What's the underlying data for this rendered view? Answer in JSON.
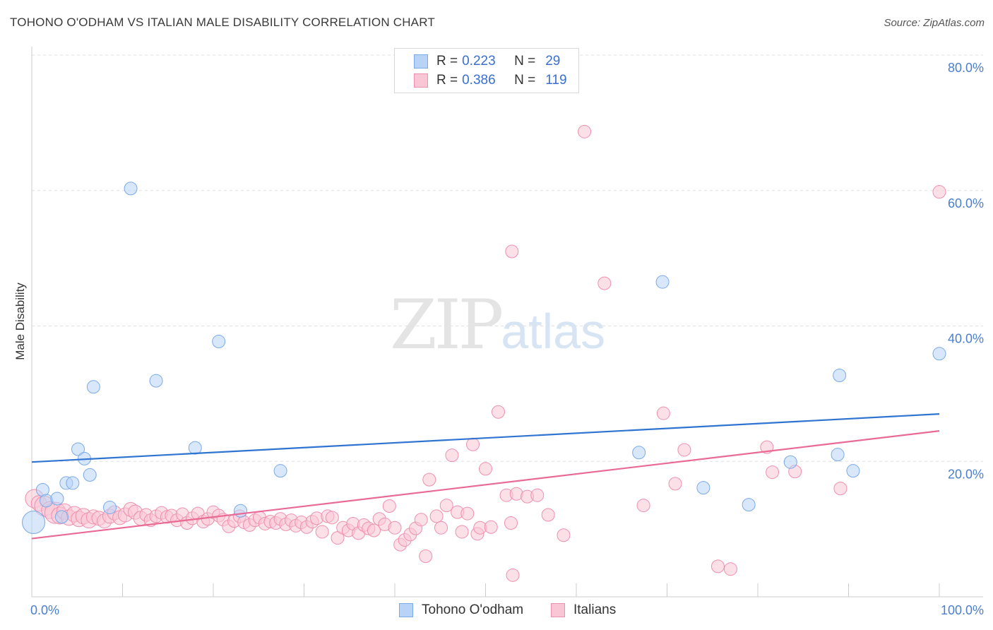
{
  "title": "TOHONO O'ODHAM VS ITALIAN MALE DISABILITY CORRELATION CHART",
  "source": "Source: ZipAtlas.com",
  "watermark": {
    "zip": "ZIP",
    "atlas": "atlas"
  },
  "colors": {
    "blue_fill": "#b8d3f5",
    "blue_stroke": "#7aaae8",
    "blue_line": "#2f74d0",
    "pink_fill": "#f9c6d6",
    "pink_stroke": "#ee8fb0",
    "pink_line": "#e86a95",
    "grid": "#e0e0e0",
    "axis": "#cccccc",
    "tick_text": "#4a7fd0"
  },
  "legend": {
    "rows": [
      {
        "r_label": "R =",
        "r_value": "0.223",
        "n_label": "N =",
        "n_value": "29"
      },
      {
        "r_label": "R =",
        "r_value": "0.386",
        "n_label": "N =",
        "n_value": "119"
      }
    ]
  },
  "bottom_legend": [
    "Tohono O'odham",
    "Italians"
  ],
  "chart_data": {
    "type": "scatter",
    "title": "TOHONO O'ODHAM VS ITALIAN MALE DISABILITY CORRELATION CHART",
    "xlabel": "",
    "ylabel": "Male Disability",
    "xlim": [
      0,
      100
    ],
    "ylim": [
      0,
      80
    ],
    "x_tick_labels": [
      "0.0%",
      "100.0%"
    ],
    "y_ticks": [
      20,
      40,
      60,
      80
    ],
    "y_tick_labels": [
      "20.0%",
      "40.0%",
      "60.0%",
      "80.0%"
    ],
    "series": [
      {
        "name": "Tohono O'odham",
        "R": 0.223,
        "N": 29,
        "trend": {
          "x": [
            0,
            100
          ],
          "y": [
            19.9,
            27.0
          ]
        },
        "points": [
          {
            "x": 0.2,
            "y": 11.0,
            "s": 16
          },
          {
            "x": 1.2,
            "y": 15.8,
            "s": 9
          },
          {
            "x": 1.6,
            "y": 14.2,
            "s": 9
          },
          {
            "x": 2.8,
            "y": 14.5,
            "s": 9
          },
          {
            "x": 3.3,
            "y": 11.8,
            "s": 9
          },
          {
            "x": 3.8,
            "y": 16.8,
            "s": 9
          },
          {
            "x": 4.5,
            "y": 16.8,
            "s": 9
          },
          {
            "x": 5.1,
            "y": 21.8,
            "s": 9
          },
          {
            "x": 5.8,
            "y": 20.4,
            "s": 9
          },
          {
            "x": 6.4,
            "y": 18.0,
            "s": 9
          },
          {
            "x": 6.8,
            "y": 31.0,
            "s": 9
          },
          {
            "x": 8.6,
            "y": 13.2,
            "s": 9
          },
          {
            "x": 10.9,
            "y": 60.3,
            "s": 9
          },
          {
            "x": 13.7,
            "y": 31.9,
            "s": 9
          },
          {
            "x": 18.0,
            "y": 22.0,
            "s": 9
          },
          {
            "x": 20.6,
            "y": 37.7,
            "s": 9
          },
          {
            "x": 23.0,
            "y": 12.7,
            "s": 9
          },
          {
            "x": 27.4,
            "y": 18.6,
            "s": 9
          },
          {
            "x": 66.9,
            "y": 21.3,
            "s": 9
          },
          {
            "x": 69.5,
            "y": 46.5,
            "s": 9
          },
          {
            "x": 74.0,
            "y": 16.1,
            "s": 9
          },
          {
            "x": 79.0,
            "y": 13.6,
            "s": 9
          },
          {
            "x": 83.6,
            "y": 19.9,
            "s": 9
          },
          {
            "x": 88.8,
            "y": 21.0,
            "s": 9
          },
          {
            "x": 89.0,
            "y": 32.7,
            "s": 9
          },
          {
            "x": 90.5,
            "y": 18.6,
            "s": 9
          },
          {
            "x": 100.0,
            "y": 35.9,
            "s": 9
          }
        ]
      },
      {
        "name": "Italians",
        "R": 0.386,
        "N": 119,
        "trend": {
          "x": [
            0,
            100
          ],
          "y": [
            8.6,
            24.5
          ]
        },
        "points": [
          {
            "x": 0.3,
            "y": 14.5,
            "s": 13
          },
          {
            "x": 0.8,
            "y": 13.8,
            "s": 11
          },
          {
            "x": 1.4,
            "y": 13.4,
            "s": 14
          },
          {
            "x": 2.0,
            "y": 12.8,
            "s": 12
          },
          {
            "x": 2.6,
            "y": 12.4,
            "s": 15
          },
          {
            "x": 3.1,
            "y": 12.0,
            "s": 12
          },
          {
            "x": 3.6,
            "y": 12.6,
            "s": 11
          },
          {
            "x": 4.1,
            "y": 11.7,
            "s": 11
          },
          {
            "x": 4.7,
            "y": 12.2,
            "s": 11
          },
          {
            "x": 5.2,
            "y": 11.5,
            "s": 11
          },
          {
            "x": 5.7,
            "y": 11.9,
            "s": 11
          },
          {
            "x": 6.3,
            "y": 11.3,
            "s": 11
          },
          {
            "x": 6.8,
            "y": 11.8,
            "s": 10
          },
          {
            "x": 7.4,
            "y": 11.6,
            "s": 10
          },
          {
            "x": 8.0,
            "y": 11.2,
            "s": 10
          },
          {
            "x": 8.6,
            "y": 11.9,
            "s": 10
          },
          {
            "x": 9.1,
            "y": 12.4,
            "s": 10
          },
          {
            "x": 9.7,
            "y": 11.7,
            "s": 10
          },
          {
            "x": 10.3,
            "y": 12.1,
            "s": 10
          },
          {
            "x": 10.9,
            "y": 12.9,
            "s": 10
          },
          {
            "x": 11.4,
            "y": 12.5,
            "s": 10
          },
          {
            "x": 12.0,
            "y": 11.6,
            "s": 10
          },
          {
            "x": 12.6,
            "y": 12.1,
            "s": 9
          },
          {
            "x": 13.1,
            "y": 11.3,
            "s": 9
          },
          {
            "x": 13.7,
            "y": 11.9,
            "s": 9
          },
          {
            "x": 14.3,
            "y": 12.4,
            "s": 9
          },
          {
            "x": 14.9,
            "y": 11.8,
            "s": 9
          },
          {
            "x": 15.4,
            "y": 12.0,
            "s": 9
          },
          {
            "x": 16.0,
            "y": 11.3,
            "s": 9
          },
          {
            "x": 16.6,
            "y": 12.2,
            "s": 9
          },
          {
            "x": 17.1,
            "y": 10.9,
            "s": 9
          },
          {
            "x": 17.7,
            "y": 11.6,
            "s": 9
          },
          {
            "x": 18.3,
            "y": 12.3,
            "s": 9
          },
          {
            "x": 18.9,
            "y": 11.1,
            "s": 9
          },
          {
            "x": 19.4,
            "y": 11.5,
            "s": 9
          },
          {
            "x": 20.0,
            "y": 12.5,
            "s": 9
          },
          {
            "x": 20.6,
            "y": 12.0,
            "s": 9
          },
          {
            "x": 21.1,
            "y": 11.4,
            "s": 9
          },
          {
            "x": 21.7,
            "y": 10.4,
            "s": 9
          },
          {
            "x": 22.3,
            "y": 11.2,
            "s": 9
          },
          {
            "x": 22.9,
            "y": 11.9,
            "s": 9
          },
          {
            "x": 23.4,
            "y": 11.0,
            "s": 9
          },
          {
            "x": 24.0,
            "y": 10.6,
            "s": 9
          },
          {
            "x": 24.6,
            "y": 11.3,
            "s": 9
          },
          {
            "x": 25.1,
            "y": 11.7,
            "s": 9
          },
          {
            "x": 25.7,
            "y": 10.8,
            "s": 9
          },
          {
            "x": 26.3,
            "y": 11.1,
            "s": 9
          },
          {
            "x": 26.9,
            "y": 10.9,
            "s": 9
          },
          {
            "x": 27.4,
            "y": 11.5,
            "s": 9
          },
          {
            "x": 28.0,
            "y": 10.7,
            "s": 9
          },
          {
            "x": 28.6,
            "y": 11.3,
            "s": 9
          },
          {
            "x": 29.1,
            "y": 10.5,
            "s": 9
          },
          {
            "x": 29.7,
            "y": 11.0,
            "s": 9
          },
          {
            "x": 30.3,
            "y": 10.3,
            "s": 9
          },
          {
            "x": 30.9,
            "y": 11.1,
            "s": 9
          },
          {
            "x": 31.4,
            "y": 11.6,
            "s": 9
          },
          {
            "x": 32.0,
            "y": 9.6,
            "s": 9
          },
          {
            "x": 32.6,
            "y": 11.9,
            "s": 9
          },
          {
            "x": 33.1,
            "y": 11.7,
            "s": 9
          },
          {
            "x": 33.7,
            "y": 8.7,
            "s": 9
          },
          {
            "x": 34.3,
            "y": 10.2,
            "s": 9
          },
          {
            "x": 34.9,
            "y": 9.8,
            "s": 9
          },
          {
            "x": 35.4,
            "y": 10.8,
            "s": 9
          },
          {
            "x": 36.0,
            "y": 9.4,
            "s": 9
          },
          {
            "x": 36.6,
            "y": 10.6,
            "s": 9
          },
          {
            "x": 37.1,
            "y": 10.1,
            "s": 9
          },
          {
            "x": 37.7,
            "y": 9.8,
            "s": 9
          },
          {
            "x": 38.3,
            "y": 11.5,
            "s": 9
          },
          {
            "x": 38.9,
            "y": 10.7,
            "s": 9
          },
          {
            "x": 39.4,
            "y": 13.4,
            "s": 9
          },
          {
            "x": 40.0,
            "y": 10.2,
            "s": 9
          },
          {
            "x": 40.6,
            "y": 7.7,
            "s": 9
          },
          {
            "x": 41.1,
            "y": 8.4,
            "s": 9
          },
          {
            "x": 41.7,
            "y": 9.2,
            "s": 9
          },
          {
            "x": 42.3,
            "y": 10.1,
            "s": 9
          },
          {
            "x": 42.9,
            "y": 11.4,
            "s": 9
          },
          {
            "x": 43.4,
            "y": 6.0,
            "s": 9
          },
          {
            "x": 43.8,
            "y": 17.3,
            "s": 9
          },
          {
            "x": 44.6,
            "y": 11.9,
            "s": 9
          },
          {
            "x": 45.1,
            "y": 10.2,
            "s": 9
          },
          {
            "x": 45.7,
            "y": 13.5,
            "s": 9
          },
          {
            "x": 46.3,
            "y": 20.9,
            "s": 9
          },
          {
            "x": 46.9,
            "y": 12.5,
            "s": 9
          },
          {
            "x": 47.4,
            "y": 9.6,
            "s": 9
          },
          {
            "x": 48.0,
            "y": 12.3,
            "s": 9
          },
          {
            "x": 48.6,
            "y": 22.5,
            "s": 9
          },
          {
            "x": 49.1,
            "y": 9.3,
            "s": 9
          },
          {
            "x": 49.4,
            "y": 10.2,
            "s": 9
          },
          {
            "x": 50.0,
            "y": 18.9,
            "s": 9
          },
          {
            "x": 50.6,
            "y": 10.3,
            "s": 9
          },
          {
            "x": 51.4,
            "y": 27.3,
            "s": 9
          },
          {
            "x": 52.3,
            "y": 15.0,
            "s": 9
          },
          {
            "x": 52.8,
            "y": 10.9,
            "s": 9
          },
          {
            "x": 52.9,
            "y": 51.0,
            "s": 9
          },
          {
            "x": 53.0,
            "y": 3.2,
            "s": 9
          },
          {
            "x": 53.4,
            "y": 15.2,
            "s": 9
          },
          {
            "x": 54.6,
            "y": 14.8,
            "s": 9
          },
          {
            "x": 55.7,
            "y": 15.0,
            "s": 9
          },
          {
            "x": 56.9,
            "y": 12.1,
            "s": 9
          },
          {
            "x": 58.6,
            "y": 9.1,
            "s": 9
          },
          {
            "x": 60.9,
            "y": 68.7,
            "s": 9
          },
          {
            "x": 63.1,
            "y": 46.3,
            "s": 9
          },
          {
            "x": 67.4,
            "y": 13.5,
            "s": 9
          },
          {
            "x": 69.6,
            "y": 27.1,
            "s": 9
          },
          {
            "x": 70.9,
            "y": 16.7,
            "s": 9
          },
          {
            "x": 71.9,
            "y": 21.7,
            "s": 9
          },
          {
            "x": 75.6,
            "y": 4.5,
            "s": 9
          },
          {
            "x": 77.0,
            "y": 4.1,
            "s": 9
          },
          {
            "x": 81.0,
            "y": 22.1,
            "s": 9
          },
          {
            "x": 81.6,
            "y": 18.4,
            "s": 9
          },
          {
            "x": 84.1,
            "y": 18.5,
            "s": 9
          },
          {
            "x": 89.1,
            "y": 16.0,
            "s": 9
          },
          {
            "x": 100.0,
            "y": 59.8,
            "s": 9
          }
        ]
      }
    ]
  }
}
